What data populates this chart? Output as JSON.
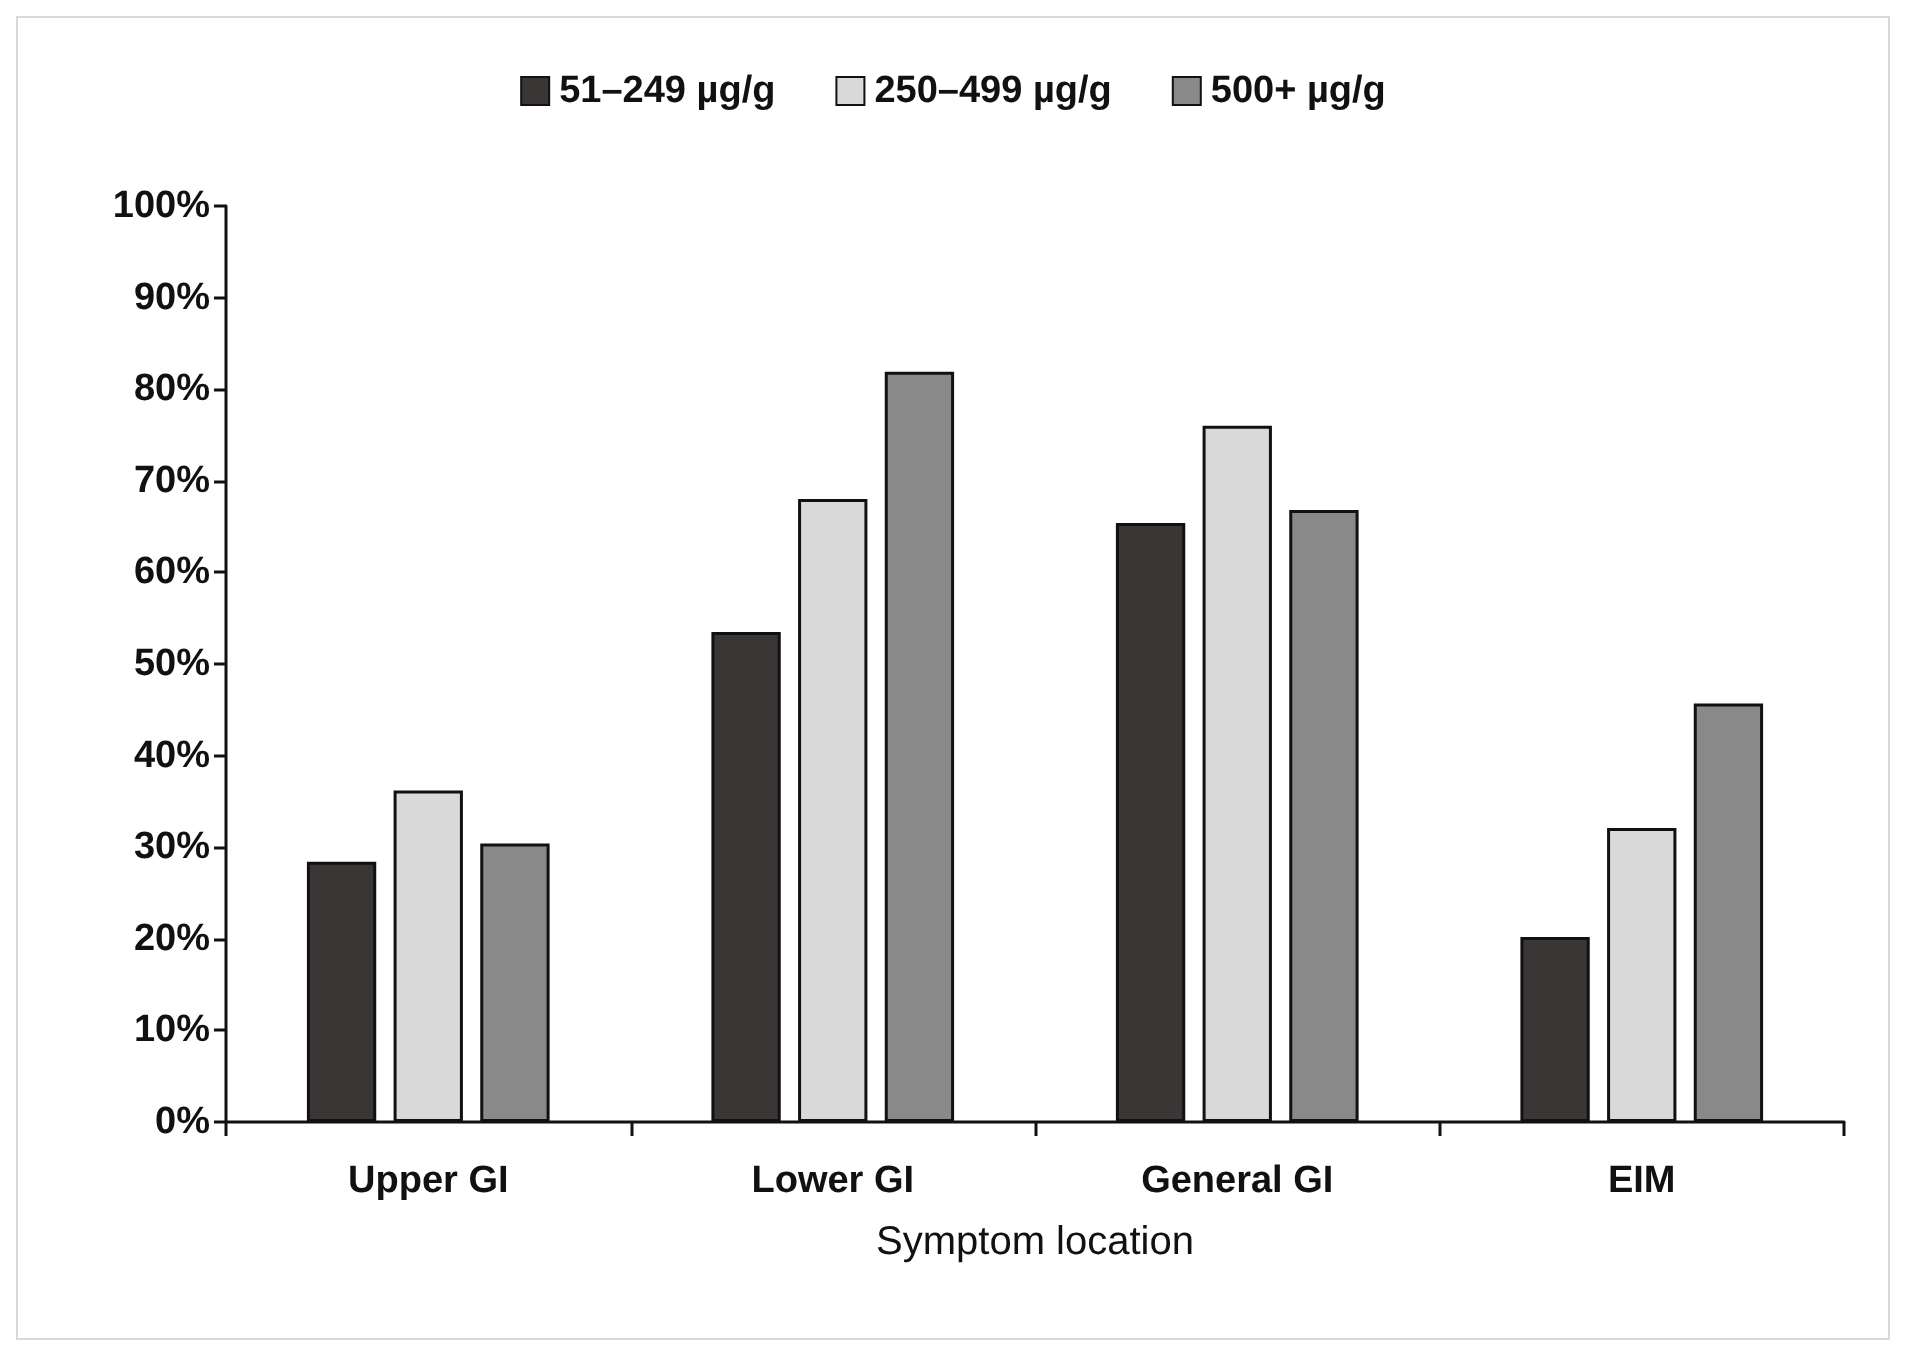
{
  "chart_data": {
    "type": "bar",
    "xlabel": "Symptom location",
    "categories": [
      "Upper GI",
      "Lower GI",
      "General GI",
      "EIM"
    ],
    "series": [
      {
        "name": "51–249 µg/g",
        "color": "#3a3635",
        "values": [
          28.4,
          53.5,
          65.4,
          20.2
        ]
      },
      {
        "name": "250–499 µg/g",
        "color": "#d9d9d9",
        "values": [
          36.2,
          68.0,
          76.0,
          32.1
        ]
      },
      {
        "name": "500+ µg/g",
        "color": "#898989",
        "values": [
          30.4,
          81.9,
          66.8,
          45.7
        ]
      }
    ],
    "ylim": [
      0,
      100
    ],
    "yticks": [
      {
        "value": 0,
        "label": "0%"
      },
      {
        "value": 10,
        "label": "10%"
      },
      {
        "value": 20,
        "label": "20%"
      },
      {
        "value": 30,
        "label": "30%"
      },
      {
        "value": 40,
        "label": "40%"
      },
      {
        "value": 50,
        "label": "50%"
      },
      {
        "value": 60,
        "label": "60%"
      },
      {
        "value": 70,
        "label": "70%"
      },
      {
        "value": 80,
        "label": "80%"
      },
      {
        "value": 90,
        "label": "90%"
      },
      {
        "value": 100,
        "label": "100%"
      }
    ],
    "grid": false,
    "legend": "top"
  }
}
